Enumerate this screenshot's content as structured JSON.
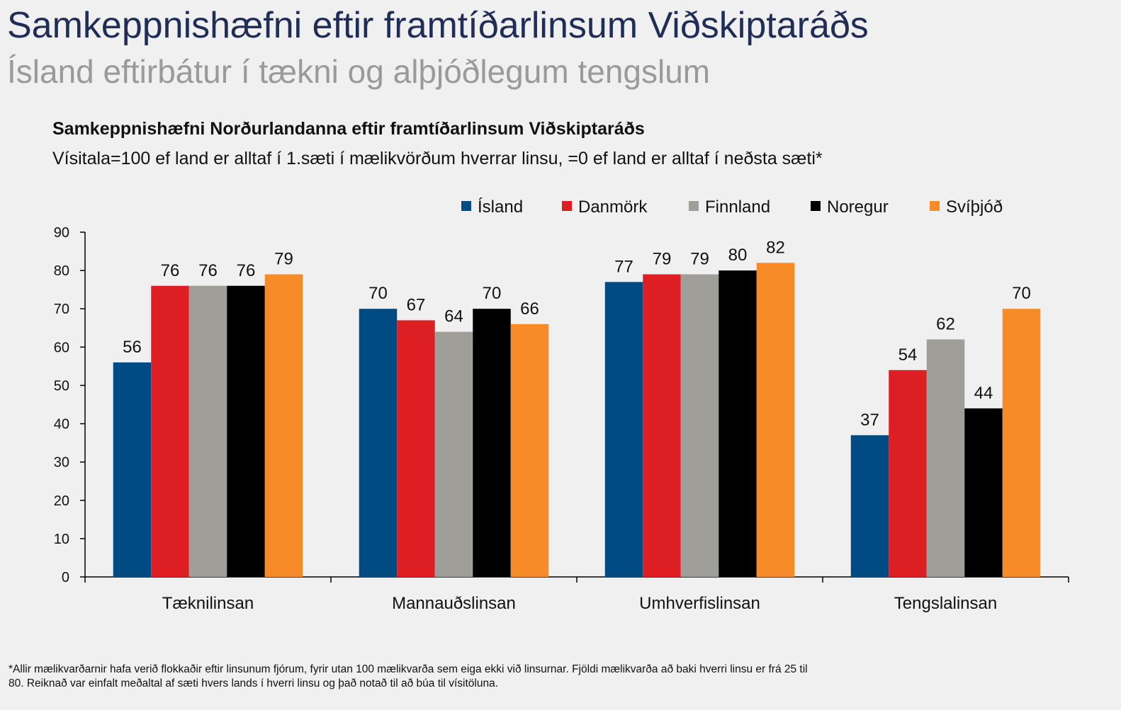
{
  "header": {
    "title": "Samkeppnishæfni eftir framtíðarlinsum Viðskiptaráðs",
    "subtitle": "Ísland eftirbátur í tækni og alþjóðlegum tengslum"
  },
  "chart_data": {
    "type": "bar",
    "title": "Samkeppnishæfni Norðurlandanna eftir framtíðarlinsum Viðskiptaráðs",
    "subtitle": "Vísitala=100 ef land er alltaf í 1.sæti í mælikvörðum hverrar linsu, =0 ef land er alltaf í neðsta sæti*",
    "categories": [
      "Tæknilinsan",
      "Mannauðslinsan",
      "Umhverfislinsan",
      "Tengslalinsan"
    ],
    "series": [
      {
        "name": "Ísland",
        "color": "#004b84",
        "values": [
          56,
          70,
          77,
          37
        ],
        "labels": [
          "56",
          "70",
          "77",
          "37"
        ]
      },
      {
        "name": "Danmörk",
        "color": "#dd1e22",
        "values": [
          76,
          67,
          79,
          54
        ],
        "labels": [
          "76",
          "67",
          "79",
          "54"
        ]
      },
      {
        "name": "Finnland",
        "color": "#a09e99",
        "values": [
          76,
          64,
          79,
          62
        ],
        "labels": [
          "76",
          "64",
          "79",
          "62"
        ]
      },
      {
        "name": "Noregur",
        "color": "#000000",
        "values": [
          76,
          70,
          80,
          44
        ],
        "labels": [
          "76",
          "70",
          "80",
          "44"
        ]
      },
      {
        "name": "Svíþjóð",
        "color": "#f68b28",
        "values": [
          79,
          66,
          82,
          70
        ],
        "labels": [
          "79",
          "66",
          "82",
          "70"
        ]
      }
    ],
    "ylim": [
      0,
      90
    ],
    "yticks": [
      "0",
      "10",
      "20",
      "30",
      "40",
      "50",
      "60",
      "70",
      "80",
      "90"
    ],
    "legend_position": "top-right",
    "grid": false
  },
  "footnote": {
    "line1": "*Allir mælikvarðarnir hafa verið flokkaðir eftir linsunum fjórum, fyrir utan 100 mælikvarða sem eiga ekki við linsurnar. Fjöldi mælikvarða að baki hverri linsu er frá 25 til",
    "line2": "80. Reiknað var einfalt meðaltal af sæti hvers lands í hverri linsu og það notað til að búa til vísitöluna."
  }
}
